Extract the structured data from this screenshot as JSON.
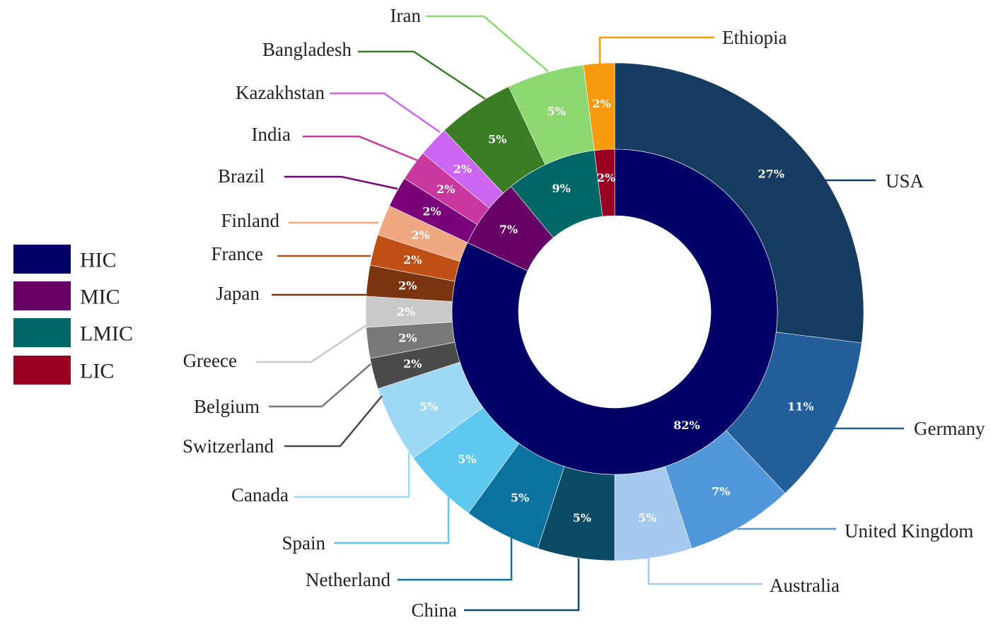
{
  "chart_data": {
    "type": "pie",
    "subtype": "nested-donut",
    "legend": [
      {
        "label": "HIC",
        "color": "#000066"
      },
      {
        "label": "MIC",
        "color": "#660066"
      },
      {
        "label": "LMIC",
        "color": "#006666"
      },
      {
        "label": "LIC",
        "color": "#990022"
      }
    ],
    "inner_ring": [
      {
        "group": "HIC",
        "percent": 82,
        "label": "82%",
        "color": "#000066"
      },
      {
        "group": "MIC",
        "percent": 7,
        "label": "7%",
        "color": "#660066"
      },
      {
        "group": "LMIC",
        "percent": 9,
        "label": "9%",
        "color": "#006666"
      },
      {
        "group": "LIC",
        "percent": 2,
        "label": "2%",
        "color": "#990022"
      }
    ],
    "outer_ring": [
      {
        "name": "USA",
        "value": 27,
        "label": "27%",
        "color": "#173c62"
      },
      {
        "name": "Germany",
        "value": 11,
        "label": "11%",
        "color": "#225e9a"
      },
      {
        "name": "United Kingdom",
        "value": 7,
        "label": "7%",
        "color": "#5198da"
      },
      {
        "name": "Australia",
        "value": 5,
        "label": "5%",
        "color": "#a5c9ee"
      },
      {
        "name": "China",
        "value": 5,
        "label": "5%",
        "color": "#0a4a64"
      },
      {
        "name": "Netherland",
        "value": 5,
        "label": "5%",
        "color": "#0c73a0"
      },
      {
        "name": "Spain",
        "value": 5,
        "label": "5%",
        "color": "#5ec8f0"
      },
      {
        "name": "Canada",
        "value": 5,
        "label": "5%",
        "color": "#9dd9f5"
      },
      {
        "name": "Switzerland",
        "value": 2,
        "label": "2%",
        "color": "#4a4a4a"
      },
      {
        "name": "Belgium",
        "value": 2,
        "label": "2%",
        "color": "#787878"
      },
      {
        "name": "Greece",
        "value": 2,
        "label": "2%",
        "color": "#c9c9c9"
      },
      {
        "name": "Japan",
        "value": 2,
        "label": "2%",
        "color": "#7a3510"
      },
      {
        "name": "France",
        "value": 2,
        "label": "2%",
        "color": "#c04f15"
      },
      {
        "name": "Finland",
        "value": 2,
        "label": "2%",
        "color": "#f0a882"
      },
      {
        "name": "Brazil",
        "value": 2,
        "label": "2%",
        "color": "#7a007a"
      },
      {
        "name": "India",
        "value": 2,
        "label": "2%",
        "color": "#c8389e"
      },
      {
        "name": "Kazakhstan",
        "value": 2,
        "label": "2%",
        "color": "#cc66f2"
      },
      {
        "name": "Bangladesh",
        "value": 5,
        "label": "5%",
        "color": "#3a7d25"
      },
      {
        "name": "Iran",
        "value": 5,
        "label": "5%",
        "color": "#8ed872"
      },
      {
        "name": "Ethiopia",
        "value": 2,
        "label": "2%",
        "color": "#f7990c"
      }
    ]
  }
}
